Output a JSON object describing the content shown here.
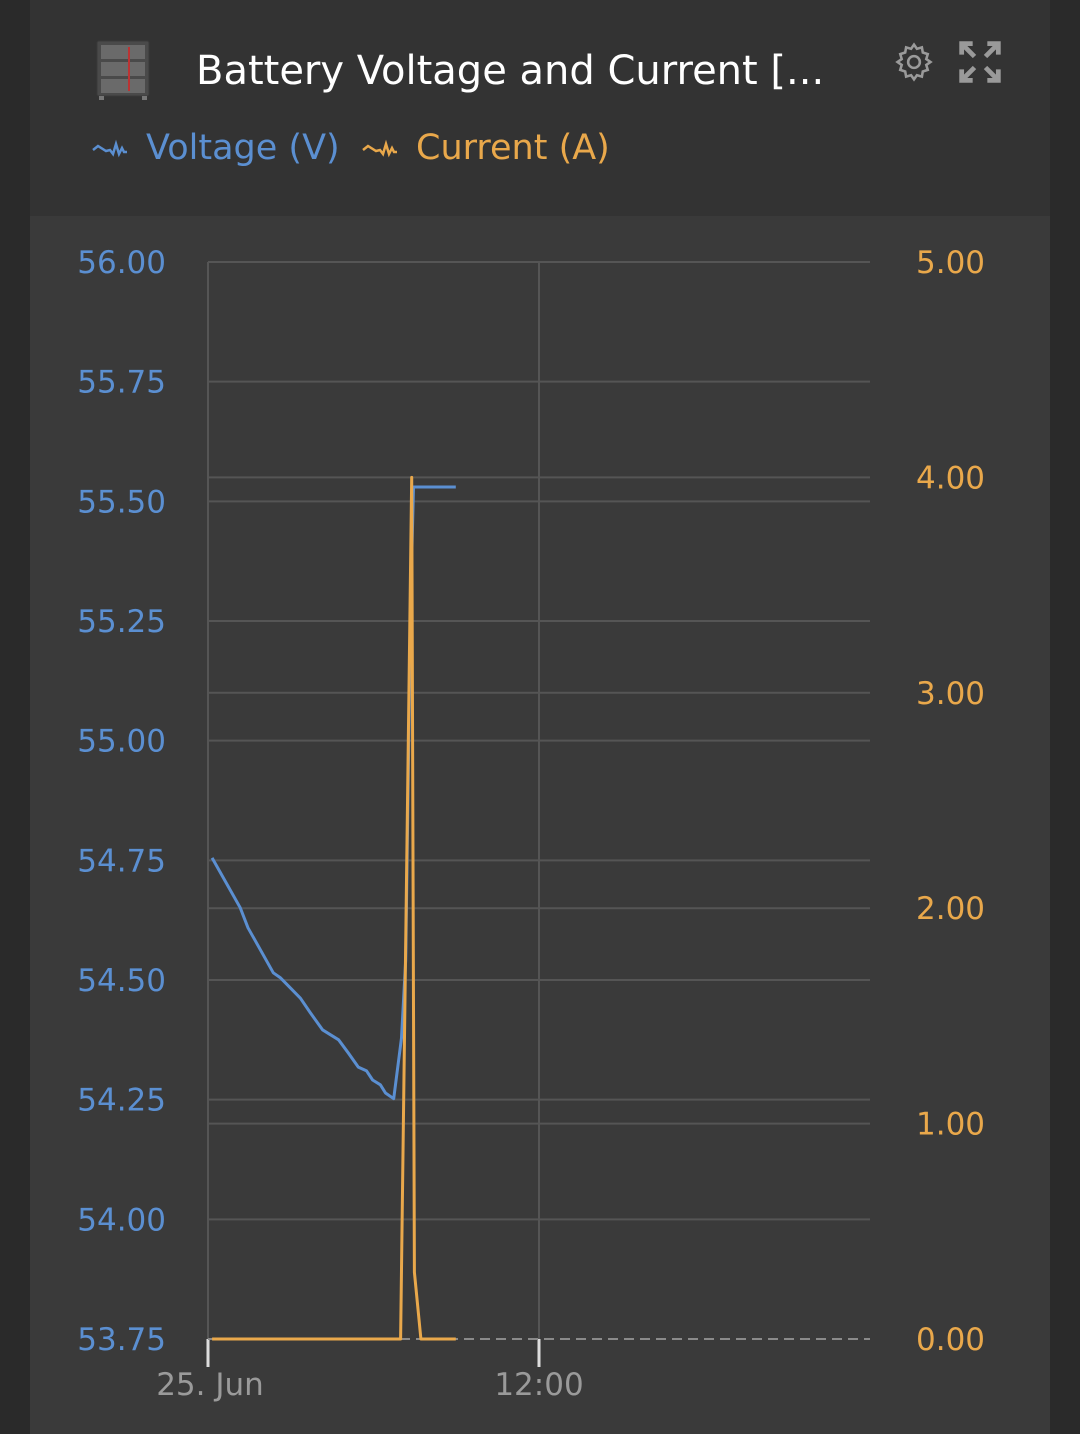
{
  "header": {
    "title": "Battery Voltage and Current [...",
    "icons": {
      "device": "battery-rack-icon",
      "settings": "gear-icon",
      "fullscreen": "expand-icon"
    }
  },
  "colors": {
    "voltage": "#5b8fd1",
    "current": "#e9a84b",
    "grid": "#555555",
    "background": "#3a3a3a"
  },
  "chart_data": {
    "type": "line",
    "title": "Battery Voltage and Current [...",
    "x_ticks": [
      "25. Jun",
      "12:00"
    ],
    "x_range": [
      "00:00",
      "24:00"
    ],
    "y_left": {
      "ticks": [
        "56.00",
        "55.75",
        "55.50",
        "55.25",
        "55.00",
        "54.75",
        "54.50",
        "54.25",
        "54.00",
        "53.75"
      ],
      "range": [
        53.75,
        56.0
      ]
    },
    "y_right": {
      "ticks": [
        "5.00",
        "4.00",
        "3.00",
        "2.00",
        "1.00",
        "0.00"
      ],
      "range": [
        0,
        5
      ]
    },
    "grid": true,
    "legend_position": "top-left",
    "series": [
      {
        "name": "Voltage (V)",
        "axis": "left",
        "color": "#5b8fd1",
        "points": [
          [
            "00:09",
            54.755
          ],
          [
            "01:10",
            54.651
          ],
          [
            "01:27",
            54.609
          ],
          [
            "02:22",
            54.515
          ],
          [
            "02:37",
            54.505
          ],
          [
            "03:21",
            54.462
          ],
          [
            "03:43",
            54.431
          ],
          [
            "04:09",
            54.396
          ],
          [
            "04:44",
            54.375
          ],
          [
            "05:05",
            54.348
          ],
          [
            "05:27",
            54.318
          ],
          [
            "05:45",
            54.31
          ],
          [
            "05:58",
            54.291
          ],
          [
            "06:15",
            54.281
          ],
          [
            "06:26",
            54.264
          ],
          [
            "06:44",
            54.252
          ],
          [
            "07:01",
            54.379
          ],
          [
            "07:10",
            54.542
          ],
          [
            "07:21",
            55.294
          ],
          [
            "07:27",
            55.53
          ],
          [
            "08:59",
            55.53
          ]
        ]
      },
      {
        "name": "Current (A)",
        "axis": "right",
        "color": "#e9a84b",
        "points": [
          [
            "00:09",
            0
          ],
          [
            "06:59",
            0
          ],
          [
            "07:23",
            4.0
          ],
          [
            "07:29",
            0.31
          ],
          [
            "07:43",
            0
          ],
          [
            "08:59",
            0
          ]
        ]
      }
    ]
  }
}
